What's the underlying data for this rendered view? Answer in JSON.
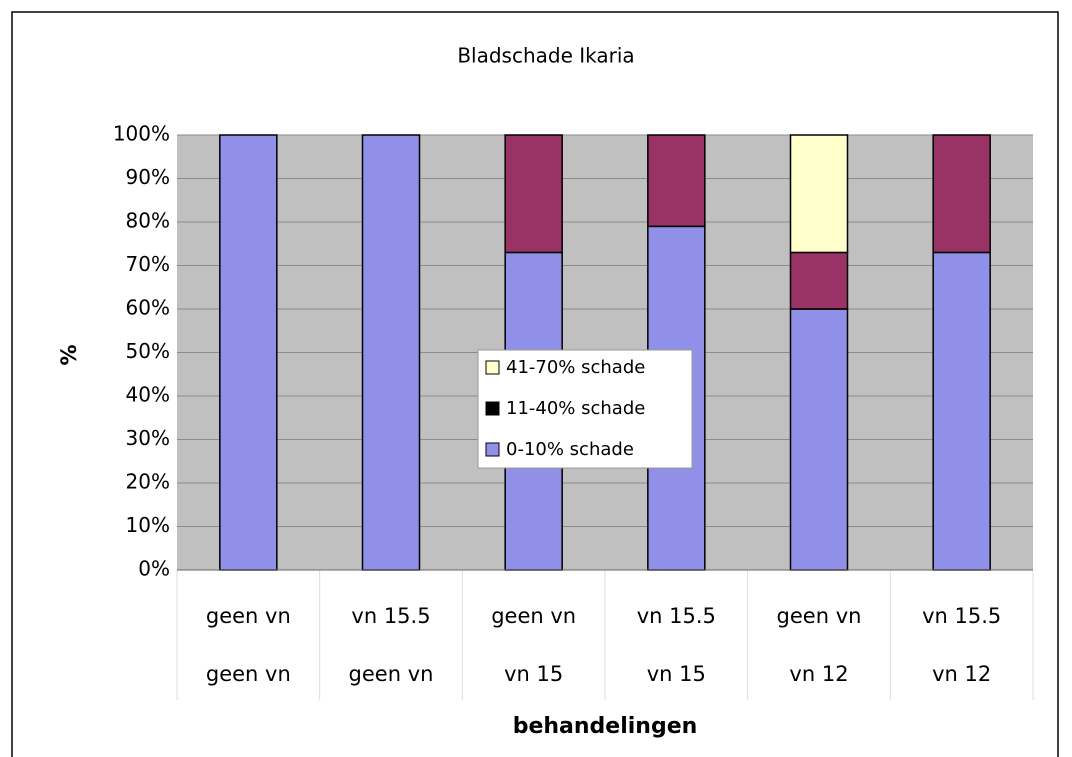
{
  "chart_data": {
    "type": "stacked_bar_100",
    "title": "Bladschade Ikaria",
    "y_label": "%",
    "x_label": "behandelingen",
    "categories": [
      [
        "geen vn",
        "geen vn"
      ],
      [
        "vn 15.5",
        "geen vn"
      ],
      [
        "geen vn",
        "vn 15"
      ],
      [
        "vn 15.5",
        "vn 15"
      ],
      [
        "geen vn",
        "vn 12"
      ],
      [
        "vn 15.5",
        "vn 12"
      ]
    ],
    "series": [
      {
        "name": "0-10% schade",
        "color": "#9090e8",
        "values": [
          100,
          100,
          73,
          79,
          60,
          73
        ]
      },
      {
        "name": "11-40% schade",
        "color": "#993366",
        "values": [
          0,
          0,
          27,
          21,
          13,
          27
        ]
      },
      {
        "name": "41-70% schade",
        "color": "#ffffcc",
        "values": [
          0,
          0,
          0,
          0,
          27,
          0
        ]
      }
    ],
    "ylim": [
      0,
      100
    ],
    "yticks": [
      {
        "value": 0,
        "label": "0%"
      },
      {
        "value": 10,
        "label": "10%"
      },
      {
        "value": 20,
        "label": "20%"
      },
      {
        "value": 30,
        "label": "30%"
      },
      {
        "value": 40,
        "label": "40%"
      },
      {
        "value": 50,
        "label": "50%"
      },
      {
        "value": 60,
        "label": "60%"
      },
      {
        "value": 70,
        "label": "70%"
      },
      {
        "value": 80,
        "label": "80%"
      },
      {
        "value": 90,
        "label": "90%"
      },
      {
        "value": 100,
        "label": "100%"
      }
    ],
    "grid": true
  }
}
